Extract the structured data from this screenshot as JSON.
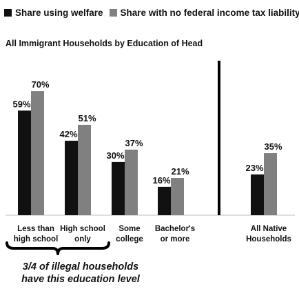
{
  "legend": {
    "items": [
      {
        "label": "Share using welfare",
        "color": "#111111"
      },
      {
        "label": "Share with no federal income tax liability",
        "color": "#808080"
      }
    ]
  },
  "subtitle": "All Immigrant Households by Education of Head",
  "note": {
    "line1": "3/4 of illegal households",
    "line2": "have this education level"
  },
  "chart_data": {
    "type": "bar",
    "title": "All Immigrant Households by Education of Head",
    "categories": [
      [
        "Less than",
        "high school"
      ],
      [
        "High school",
        "only"
      ],
      [
        "Some",
        "college"
      ],
      [
        "Bachelor's",
        "or more"
      ],
      [
        "All Native",
        "Households"
      ]
    ],
    "series": [
      {
        "name": "Share using welfare",
        "color": "#111111",
        "values": [
          59,
          42,
          30,
          16,
          23
        ]
      },
      {
        "name": "Share with no federal income tax liability",
        "color": "#808080",
        "values": [
          70,
          51,
          37,
          21,
          35
        ]
      }
    ],
    "value_suffix": "%",
    "ylim": [
      0,
      80
    ],
    "grid": false,
    "separator_before_category_index": 4,
    "bracket_over_categories": [
      0,
      1
    ],
    "legend_position": "top-left"
  }
}
